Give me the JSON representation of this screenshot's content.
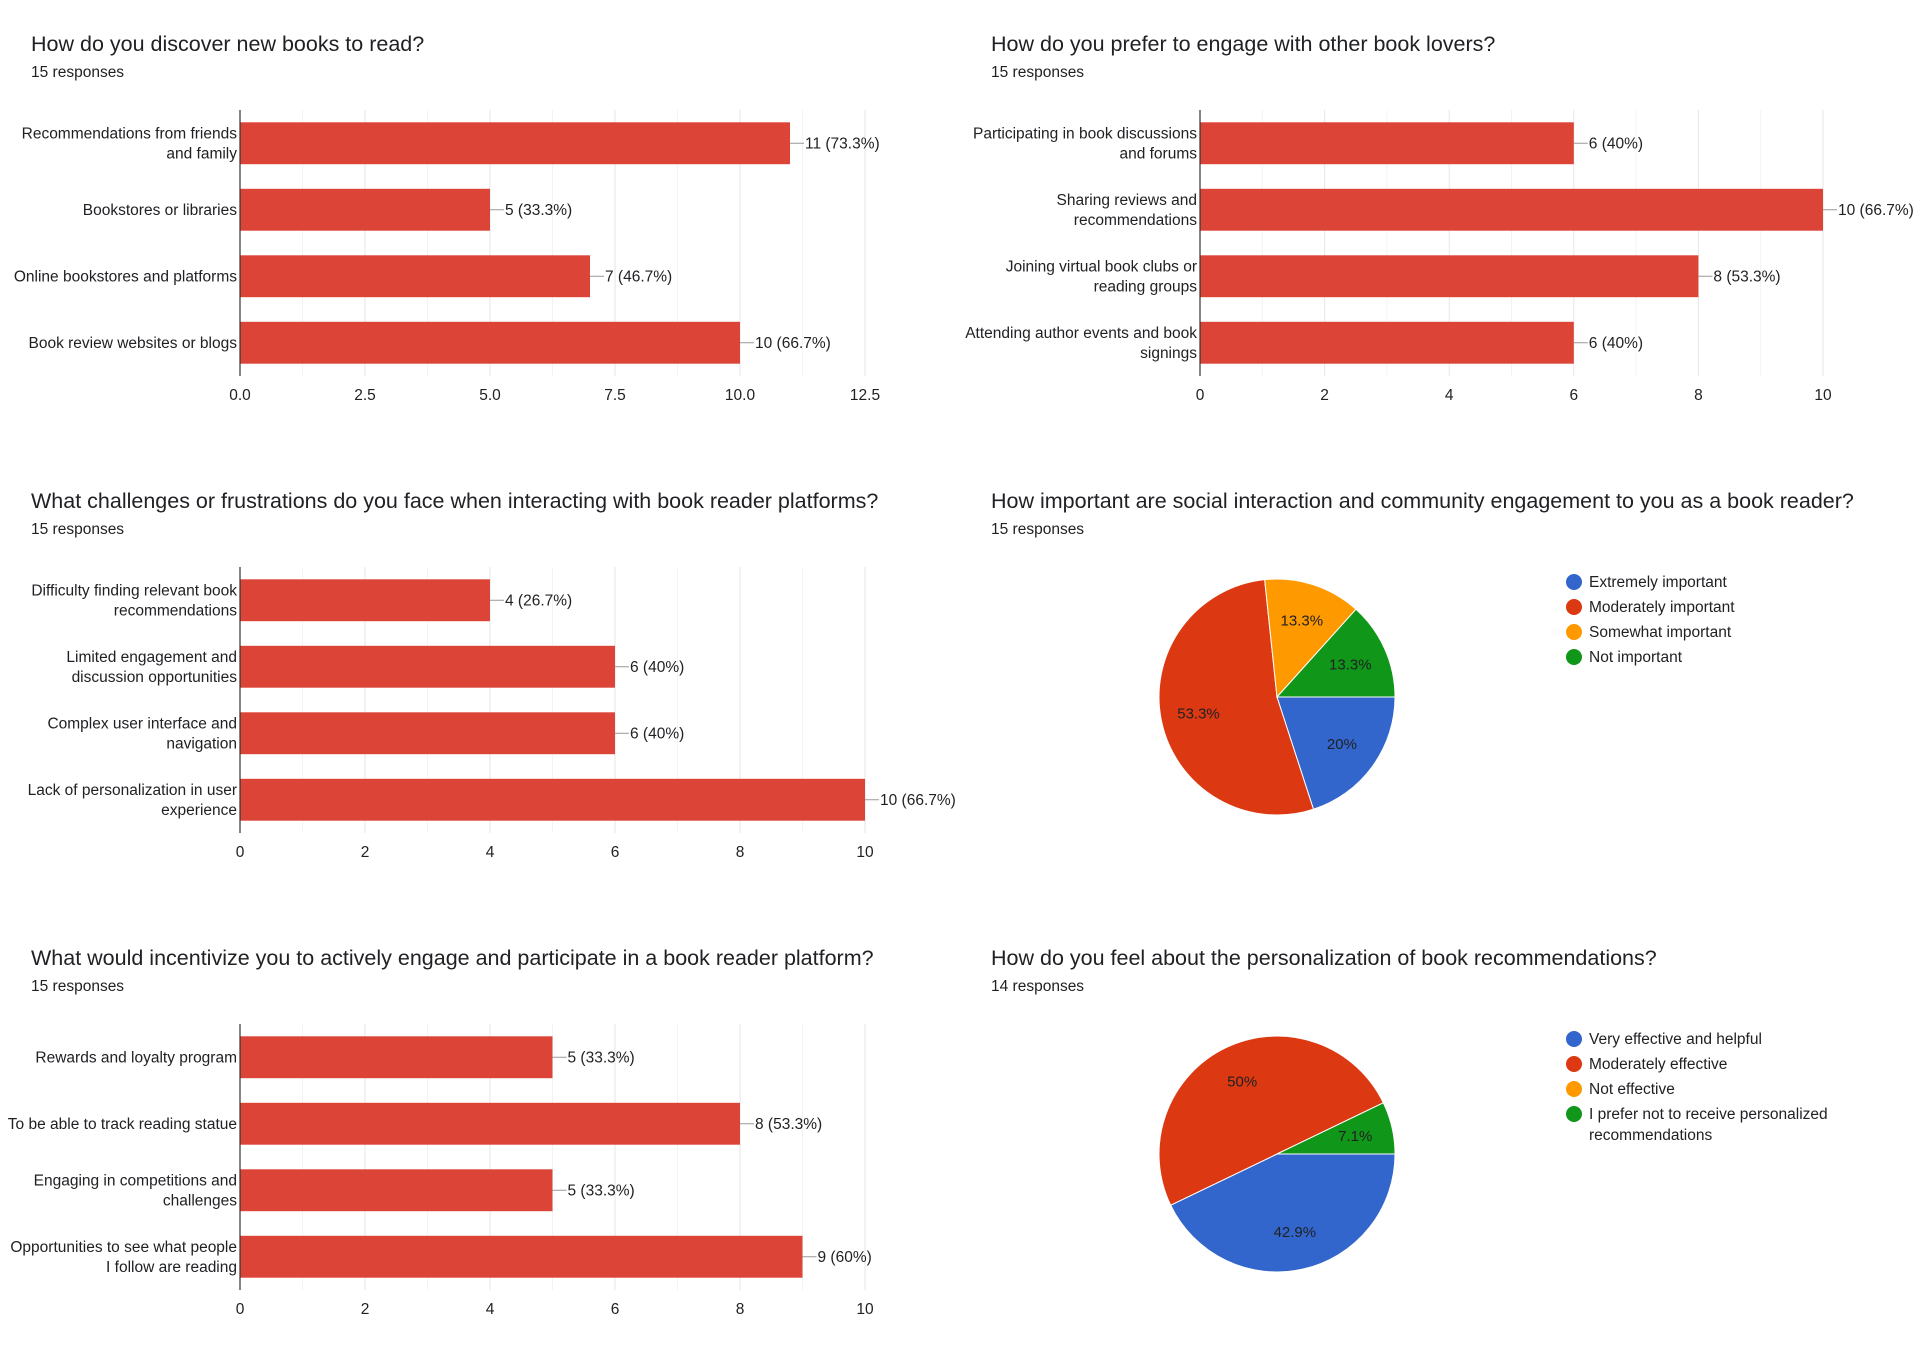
{
  "chart_data": [
    {
      "type": "bar",
      "orientation": "horizontal",
      "title": "How do you discover new books to read?",
      "subtitle": "15 responses",
      "categories": [
        [
          "Recommendations from friends",
          "and family"
        ],
        [
          "Bookstores or libraries"
        ],
        [
          "Online bookstores and platforms"
        ],
        [
          "Book review websites or blogs"
        ]
      ],
      "values": [
        11,
        5,
        7,
        10
      ],
      "data_labels": [
        "11 (73.3%)",
        "5 (33.3%)",
        "7 (46.7%)",
        "10 (66.7%)"
      ],
      "xlim": [
        0,
        12.5
      ],
      "ticks": [
        "0.0",
        "2.5",
        "5.0",
        "7.5",
        "10.0",
        "12.5"
      ],
      "grid": true,
      "color": "#db4437"
    },
    {
      "type": "bar",
      "orientation": "horizontal",
      "title": "How do you prefer to engage with other book lovers?",
      "subtitle": "15 responses",
      "categories": [
        [
          "Participating in book discussions",
          "and forums"
        ],
        [
          "Sharing reviews and",
          "recommendations"
        ],
        [
          "Joining virtual book clubs or",
          "reading groups"
        ],
        [
          "Attending author events and book",
          "signings"
        ]
      ],
      "values": [
        6,
        10,
        8,
        6
      ],
      "data_labels": [
        "6 (40%)",
        "10 (66.7%)",
        "8 (53.3%)",
        "6 (40%)"
      ],
      "xlim": [
        0,
        10
      ],
      "ticks": [
        "0",
        "2",
        "4",
        "6",
        "8",
        "10"
      ],
      "grid": true,
      "color": "#db4437"
    },
    {
      "type": "bar",
      "orientation": "horizontal",
      "title": "What challenges or frustrations do you face when interacting with book reader platforms?",
      "subtitle": "15 responses",
      "categories": [
        [
          "Difficulty finding relevant book",
          "recommendations"
        ],
        [
          "Limited engagement and",
          "discussion opportunities"
        ],
        [
          "Complex user interface and",
          "navigation"
        ],
        [
          "Lack of personalization in user",
          "experience"
        ]
      ],
      "values": [
        4,
        6,
        6,
        10
      ],
      "data_labels": [
        "4 (26.7%)",
        "6 (40%)",
        "6 (40%)",
        "10 (66.7%)"
      ],
      "xlim": [
        0,
        10
      ],
      "ticks": [
        "0",
        "2",
        "4",
        "6",
        "8",
        "10"
      ],
      "grid": true,
      "color": "#db4437"
    },
    {
      "type": "pie",
      "title": "How important are social interaction and community engagement to you as a book reader?",
      "subtitle": "15 responses",
      "slices": [
        {
          "label": "Extremely important",
          "value": 3,
          "percent_label": "20%",
          "color": "#3366cc"
        },
        {
          "label": "Moderately important",
          "value": 8,
          "percent_label": "53.3%",
          "color": "#dc3912"
        },
        {
          "label": "Somewhat important",
          "value": 2,
          "percent_label": "13.3%",
          "color": "#ff9900"
        },
        {
          "label": "Not important",
          "value": 2,
          "percent_label": "13.3%",
          "color": "#109618"
        }
      ],
      "legend": "right"
    },
    {
      "type": "bar",
      "orientation": "horizontal",
      "title": "What would incentivize you to actively engage and participate in a book reader platform?",
      "subtitle": "15 responses",
      "categories": [
        [
          "Rewards and loyalty program"
        ],
        [
          "To be able to track reading statue"
        ],
        [
          "Engaging in competitions and",
          "challenges"
        ],
        [
          "Opportunities to see what people",
          "I follow are reading"
        ]
      ],
      "values": [
        5,
        8,
        5,
        9
      ],
      "data_labels": [
        "5 (33.3%)",
        "8 (53.3%)",
        "5 (33.3%)",
        "9 (60%)"
      ],
      "xlim": [
        0,
        10
      ],
      "ticks": [
        "0",
        "2",
        "4",
        "6",
        "8",
        "10"
      ],
      "grid": true,
      "color": "#db4437"
    },
    {
      "type": "pie",
      "title": "How do you feel about the personalization of book recommendations?",
      "subtitle": "14 responses",
      "slices": [
        {
          "label": "Very effective and helpful",
          "value": 6,
          "percent_label": "42.9%",
          "color": "#3366cc"
        },
        {
          "label": "Moderately effective",
          "value": 7,
          "percent_label": "50%",
          "color": "#dc3912"
        },
        {
          "label": "Not effective",
          "value": 0,
          "percent_label": "",
          "color": "#ff9900"
        },
        {
          "label": [
            "I prefer not to receive personalized",
            "recommendations"
          ],
          "value": 1,
          "percent_label": "7.1%",
          "color": "#109618"
        }
      ],
      "legend": "right"
    }
  ]
}
